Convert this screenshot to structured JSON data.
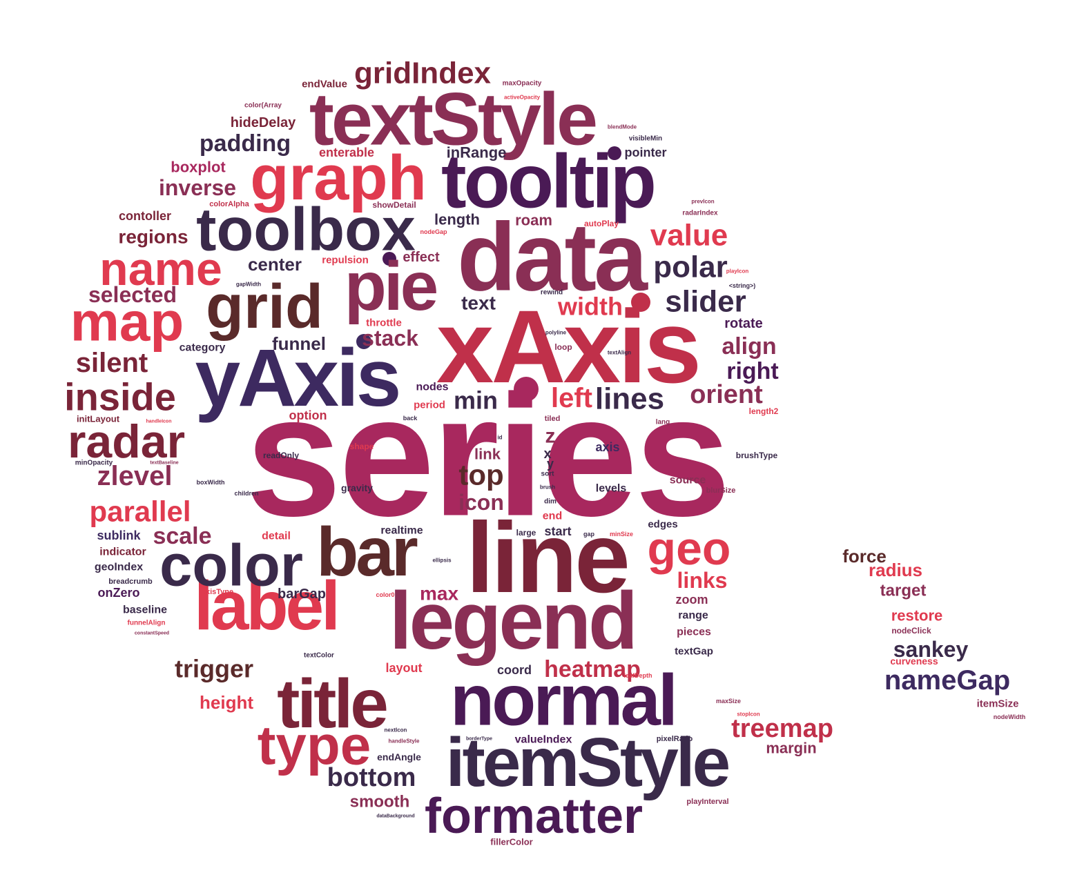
{
  "colors": {
    "red": "#e03a4f",
    "crimson": "#c0304a",
    "magenta": "#a8285e",
    "plum": "#8a2f55",
    "wine": "#7a2438",
    "purple": "#4a1a55",
    "dark": "#3a2a4a",
    "navy": "#3d2a60",
    "brown": "#5a2a2a"
  },
  "words": [
    {
      "text": "series"
    },
    {
      "text": "xAxis"
    },
    {
      "text": "yAxis"
    },
    {
      "text": "data"
    },
    {
      "text": "line"
    },
    {
      "text": "legend"
    },
    {
      "text": "tooltip"
    },
    {
      "text": "textStyle"
    },
    {
      "text": "itemStyle"
    },
    {
      "text": "normal"
    },
    {
      "text": "title"
    },
    {
      "text": "label"
    },
    {
      "text": "bar"
    },
    {
      "text": "color"
    },
    {
      "text": "pie"
    },
    {
      "text": "toolbox"
    },
    {
      "text": "grid"
    },
    {
      "text": "graph"
    },
    {
      "text": "map"
    },
    {
      "text": "name"
    },
    {
      "text": "radar"
    },
    {
      "text": "type"
    },
    {
      "text": "formatter"
    },
    {
      "text": "geo"
    },
    {
      "text": "inside"
    },
    {
      "text": "gridIndex"
    },
    {
      "text": "treemap"
    },
    {
      "text": "polar"
    },
    {
      "text": "slider"
    },
    {
      "text": "value"
    },
    {
      "text": "lines"
    },
    {
      "text": "parallel"
    },
    {
      "text": "nameGap"
    },
    {
      "text": "trigger"
    },
    {
      "text": "heatmap"
    },
    {
      "text": "bottom"
    },
    {
      "text": "padding"
    },
    {
      "text": "silent"
    },
    {
      "text": "zlevel"
    },
    {
      "text": "top"
    },
    {
      "text": "orient"
    },
    {
      "text": "right"
    },
    {
      "text": "align"
    },
    {
      "text": "width"
    },
    {
      "text": "stack"
    },
    {
      "text": "left"
    },
    {
      "text": "min"
    },
    {
      "text": "icon"
    },
    {
      "text": "scale"
    },
    {
      "text": "links"
    },
    {
      "text": "max"
    },
    {
      "text": "sankey"
    },
    {
      "text": "inverse"
    },
    {
      "text": "selected"
    },
    {
      "text": "regions"
    },
    {
      "text": "center"
    },
    {
      "text": "text"
    },
    {
      "text": "funnel"
    },
    {
      "text": "smooth"
    },
    {
      "text": "height"
    },
    {
      "text": "margin"
    },
    {
      "text": "force"
    },
    {
      "text": "radius"
    },
    {
      "text": "target"
    },
    {
      "text": "restore"
    },
    {
      "text": "boxplot"
    },
    {
      "text": "hideDelay"
    },
    {
      "text": "enterable"
    },
    {
      "text": "inRange"
    },
    {
      "text": "pointer"
    },
    {
      "text": "length"
    },
    {
      "text": "roam"
    },
    {
      "text": "rotate"
    },
    {
      "text": "contoller"
    },
    {
      "text": "link"
    },
    {
      "text": "z"
    },
    {
      "text": "x"
    },
    {
      "text": "y"
    },
    {
      "text": "axis"
    },
    {
      "text": "option"
    },
    {
      "text": "effect"
    },
    {
      "text": "repulsion"
    },
    {
      "text": "throttle"
    },
    {
      "text": "category"
    },
    {
      "text": "nodes"
    },
    {
      "text": "period"
    },
    {
      "text": "detail"
    },
    {
      "text": "realtime"
    },
    {
      "text": "start"
    },
    {
      "text": "end"
    },
    {
      "text": "edges"
    },
    {
      "text": "source"
    },
    {
      "text": "levels"
    },
    {
      "text": "gravity"
    },
    {
      "text": "zoom"
    },
    {
      "text": "range"
    },
    {
      "text": "pieces"
    },
    {
      "text": "textGap"
    },
    {
      "text": "coord"
    },
    {
      "text": "layout"
    },
    {
      "text": "barGap"
    },
    {
      "text": "onZero"
    },
    {
      "text": "baseline"
    },
    {
      "text": "indicator"
    },
    {
      "text": "geoIndex"
    },
    {
      "text": "sublink"
    },
    {
      "text": "valueIndex"
    },
    {
      "text": "endAngle"
    },
    {
      "text": "endValue"
    },
    {
      "text": "showDetail"
    },
    {
      "text": "colorAlpha"
    },
    {
      "text": "color(Array"
    },
    {
      "text": "maxOpacity"
    },
    {
      "text": "activeOpacity"
    },
    {
      "text": "blendMode"
    },
    {
      "text": "visibleMin"
    },
    {
      "text": "prevIcon"
    },
    {
      "text": "radarIndex"
    },
    {
      "text": "autoPlay"
    },
    {
      "text": "nodeGap"
    },
    {
      "text": "playIcon"
    },
    {
      "text": "<string>)"
    },
    {
      "text": "rewind"
    },
    {
      "text": "gapWidth"
    },
    {
      "text": "polyline"
    },
    {
      "text": "textAlign"
    },
    {
      "text": "loop"
    },
    {
      "text": "length2"
    },
    {
      "text": "lang"
    },
    {
      "text": "tiled"
    },
    {
      "text": "back"
    },
    {
      "text": "id"
    },
    {
      "text": "shape"
    },
    {
      "text": "readOnly"
    },
    {
      "text": "initLayout"
    },
    {
      "text": "handleIcon"
    },
    {
      "text": "minOpacity"
    },
    {
      "text": "textBaseline"
    },
    {
      "text": "boxWidth"
    },
    {
      "text": "children"
    },
    {
      "text": "brushType"
    },
    {
      "text": "sort"
    },
    {
      "text": "brush"
    },
    {
      "text": "dim"
    },
    {
      "text": "blurSize"
    },
    {
      "text": "large"
    },
    {
      "text": "gap"
    },
    {
      "text": "minSize"
    },
    {
      "text": "ellipsis"
    },
    {
      "text": "breadcrumb"
    },
    {
      "text": "axisType"
    },
    {
      "text": "color0"
    },
    {
      "text": "funnelAlign"
    },
    {
      "text": "constantSpeed"
    },
    {
      "text": "textColor"
    },
    {
      "text": "leafDepth"
    },
    {
      "text": "nodeClick"
    },
    {
      "text": "curveness"
    },
    {
      "text": "itemSize"
    },
    {
      "text": "nodeWidth"
    },
    {
      "text": "maxSize"
    },
    {
      "text": "stopIcon"
    },
    {
      "text": "nextIcon"
    },
    {
      "text": "handleStyle"
    },
    {
      "text": "borderType"
    },
    {
      "text": "pixelRatio"
    },
    {
      "text": "playInterval"
    },
    {
      "text": "dataBackground"
    },
    {
      "text": "fillerColor"
    }
  ]
}
